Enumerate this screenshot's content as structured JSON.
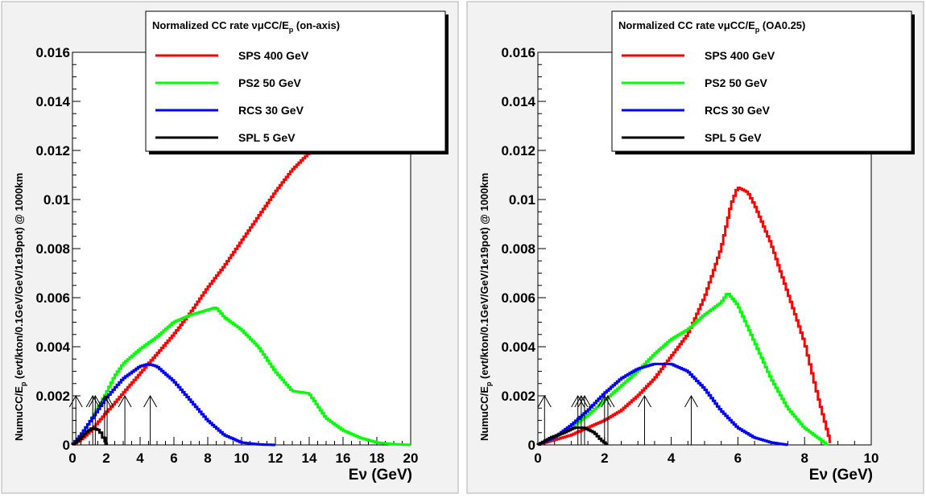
{
  "chart_data": [
    {
      "type": "line",
      "title": "Normalized CC rate νμCC/E",
      "title_sub": "p",
      "title_suffix": " (on-axis)",
      "xlabel": "Eν (GeV)",
      "ylabel": "NumuCC/E",
      "ylabel_sub": "p",
      "ylabel_suffix": " (evt/kton/0.1GeV/GeV/1e19pot) @ 1000km",
      "xlim": [
        0,
        20
      ],
      "ylim": [
        0,
        0.016
      ],
      "x_ticks": [
        0,
        2,
        4,
        6,
        8,
        10,
        12,
        14,
        16,
        18,
        20
      ],
      "x_tick_labels": [
        "0",
        "2",
        "4",
        "6",
        "8",
        "10",
        "12",
        "14",
        "16",
        "18",
        "20"
      ],
      "y_ticks": [
        0,
        0.002,
        0.004,
        0.006,
        0.008,
        0.01,
        0.012,
        0.014,
        0.016
      ],
      "y_tick_labels": [
        "0",
        "0.002",
        "0.004",
        "0.006",
        "0.008",
        "0.01",
        "0.012",
        "0.014",
        "0.016"
      ],
      "legend_position": "top-right",
      "arrows_x": [
        0.2,
        1.2,
        1.35,
        1.9,
        2.05,
        3.1,
        4.6
      ],
      "series": [
        {
          "name": "SPS 400 GeV",
          "color": "#ff0000",
          "x": [
            0,
            0.5,
            1,
            1.5,
            2,
            3,
            4,
            5,
            6,
            7,
            8,
            9,
            10,
            11,
            12,
            13,
            14,
            14.8
          ],
          "y": [
            0,
            0.0002,
            0.0005,
            0.0009,
            0.0013,
            0.0021,
            0.0029,
            0.0037,
            0.0045,
            0.0054,
            0.0064,
            0.0073,
            0.0083,
            0.0093,
            0.0103,
            0.0112,
            0.0119,
            0.0125
          ]
        },
        {
          "name": "PS2 50 GeV",
          "color": "#00ff00",
          "x": [
            0,
            0.5,
            1,
            1.5,
            2,
            2.5,
            3,
            4,
            5,
            6,
            7,
            8,
            8.5,
            9,
            10,
            11,
            12,
            13,
            14,
            15,
            16,
            17,
            18,
            19,
            20
          ],
          "y": [
            0,
            0.0004,
            0.0009,
            0.0015,
            0.0021,
            0.0028,
            0.0033,
            0.0039,
            0.0044,
            0.005,
            0.0053,
            0.0055,
            0.0056,
            0.0052,
            0.0047,
            0.004,
            0.003,
            0.0022,
            0.0021,
            0.0011,
            0.0006,
            0.0003,
            0.0001,
            3e-05,
            0.0
          ]
        },
        {
          "name": "RCS 30 GeV",
          "color": "#0000ff",
          "x": [
            0,
            0.5,
            1,
            1.5,
            2,
            3,
            4,
            4.5,
            5,
            6,
            7,
            8,
            9,
            10,
            11,
            12
          ],
          "y": [
            0,
            0.0004,
            0.0009,
            0.0014,
            0.0019,
            0.0027,
            0.0032,
            0.0033,
            0.0032,
            0.0026,
            0.0018,
            0.001,
            0.0004,
            0.0001,
            2e-05,
            0
          ]
        },
        {
          "name": "SPL 5 GeV",
          "color": "#000000",
          "x": [
            0,
            0.4,
            0.8,
            1.2,
            1.6,
            1.9,
            2.1
          ],
          "y": [
            0,
            0.0002,
            0.0005,
            0.0007,
            0.0006,
            0.0002,
            0
          ]
        }
      ]
    },
    {
      "type": "line",
      "title": "Normalized CC rate νμCC/E",
      "title_sub": "p",
      "title_suffix": " (OA0.25)",
      "xlabel": "Eν (GeV)",
      "ylabel": "NumuCC/E",
      "ylabel_sub": "p",
      "ylabel_suffix": " (evt/kton/0.1GeV/GeV/1e19pot) @ 1000km",
      "xlim": [
        0,
        10
      ],
      "ylim": [
        0,
        0.016
      ],
      "x_ticks": [
        0,
        2,
        4,
        6,
        8,
        10
      ],
      "x_tick_labels": [
        "0",
        "2",
        "4",
        "6",
        "8",
        "10"
      ],
      "y_ticks": [
        0,
        0.002,
        0.004,
        0.006,
        0.008,
        0.01,
        0.012,
        0.014,
        0.016
      ],
      "y_tick_labels": [
        "0",
        "0.002",
        "0.004",
        "0.006",
        "0.008",
        "0.01",
        "0.012",
        "0.014",
        "0.016"
      ],
      "legend_position": "top-right",
      "arrows_x": [
        0.2,
        1.2,
        1.3,
        1.4,
        2.0,
        2.1,
        3.2,
        4.6
      ],
      "series": [
        {
          "name": "SPS 400 GeV",
          "color": "#ff0000",
          "x": [
            0,
            0.5,
            1,
            1.5,
            2,
            2.5,
            3,
            3.5,
            4,
            4.5,
            5,
            5.5,
            5.8,
            6,
            6.3,
            6.5,
            7,
            7.5,
            8,
            8.4,
            8.7,
            8.8
          ],
          "y": [
            0,
            0.0002,
            0.0004,
            0.0007,
            0.001,
            0.0014,
            0.002,
            0.0027,
            0.0036,
            0.0045,
            0.006,
            0.008,
            0.0098,
            0.0105,
            0.0103,
            0.0098,
            0.0082,
            0.0062,
            0.0042,
            0.002,
            0.0005,
            0
          ]
        },
        {
          "name": "PS2 50 GeV",
          "color": "#00ff00",
          "x": [
            0,
            0.5,
            1,
            1.5,
            2,
            2.5,
            3,
            3.5,
            4,
            4.5,
            5,
            5.5,
            5.7,
            6,
            6.5,
            7,
            7.5,
            8,
            8.5,
            8.7
          ],
          "y": [
            0,
            0.0003,
            0.0007,
            0.0012,
            0.0018,
            0.0024,
            0.003,
            0.0037,
            0.0043,
            0.0047,
            0.0053,
            0.0058,
            0.0062,
            0.0057,
            0.0042,
            0.0027,
            0.0015,
            0.0007,
            0.0002,
            0
          ]
        },
        {
          "name": "RCS 30 GeV",
          "color": "#0000ff",
          "x": [
            0,
            0.5,
            1,
            1.5,
            2,
            2.5,
            3,
            3.5,
            4,
            4.5,
            5,
            5.5,
            6,
            6.5,
            7,
            7.5
          ],
          "y": [
            0,
            0.0003,
            0.0008,
            0.0014,
            0.0021,
            0.0027,
            0.0031,
            0.0033,
            0.0033,
            0.003,
            0.0023,
            0.0014,
            0.0007,
            0.0003,
            0.0001,
            0
          ]
        },
        {
          "name": "SPL 5 GeV",
          "color": "#000000",
          "x": [
            0,
            0.4,
            0.8,
            1.1,
            1.4,
            1.7,
            1.9,
            2.1
          ],
          "y": [
            0,
            0.0003,
            0.0005,
            0.0007,
            0.0007,
            0.0005,
            0.0002,
            0
          ]
        }
      ]
    }
  ]
}
